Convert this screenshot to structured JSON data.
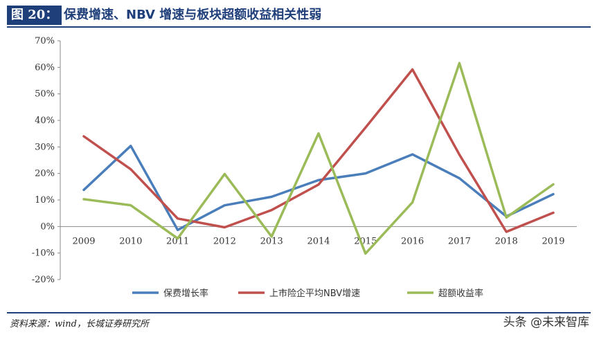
{
  "header": {
    "figure_label": "图 20：",
    "title": "保费增速、NBV 增速与板块超额收益相关性弱"
  },
  "footer": {
    "source": "资料来源：wind，长城证券研究所",
    "watermark": "头条 @未来智库"
  },
  "chart_data": {
    "type": "line",
    "title": "",
    "xlabel": "",
    "ylabel": "",
    "x": [
      "2009",
      "2010",
      "2011",
      "2012",
      "2013",
      "2014",
      "2015",
      "2016",
      "2017",
      "2018",
      "2019"
    ],
    "ylim": [
      -20,
      70
    ],
    "yticks": [
      -20,
      -10,
      0,
      10,
      20,
      30,
      40,
      50,
      60,
      70
    ],
    "ytick_labels": [
      "-20%",
      "-10%",
      "0%",
      "10%",
      "20%",
      "30%",
      "40%",
      "50%",
      "60%",
      "70%"
    ],
    "grid": false,
    "legend_position": "bottom",
    "series": [
      {
        "name": "保费增长率",
        "color": "#4a7ebb",
        "values": [
          13.8,
          30.4,
          -1.3,
          8.0,
          11.2,
          17.5,
          20.0,
          27.2,
          18.2,
          3.8,
          12.2
        ]
      },
      {
        "name": "上市险企平均NBV增速",
        "color": "#c0504d",
        "values": [
          34.0,
          21.6,
          3.0,
          -0.3,
          6.2,
          15.8,
          37.3,
          59.2,
          27.1,
          -2.0,
          5.2
        ]
      },
      {
        "name": "超额收益率",
        "color": "#9bbb59",
        "values": [
          10.3,
          8.0,
          -4.5,
          19.8,
          -3.8,
          35.1,
          -10.2,
          9.1,
          61.6,
          3.4,
          15.9
        ]
      }
    ]
  }
}
